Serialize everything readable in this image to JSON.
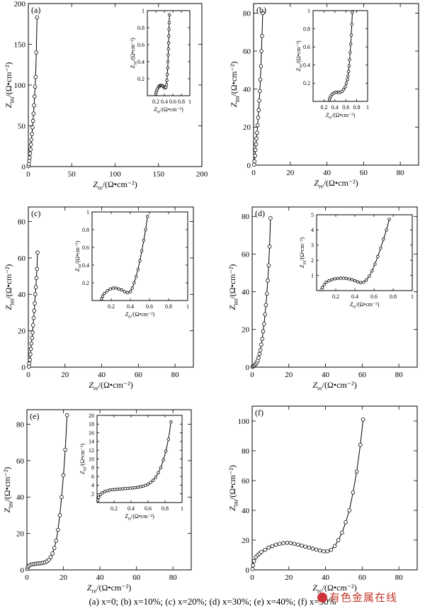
{
  "caption": "(a) x=0; (b) x=10%; (c) x=20%; (d) x=30%; (e) x=40%; (f) x=50%",
  "watermark": "有色金属在线",
  "chart_data": [
    {
      "type": "scatter",
      "panel_label": "(a)",
      "xlabel": "Zre/(Ω•cm⁻²)",
      "ylabel": "Zim/(Ω•cm⁻²)",
      "xlim": [
        0,
        200
      ],
      "ylim": [
        0,
        200
      ],
      "xticks": [
        0,
        50,
        100,
        150,
        200
      ],
      "yticks": [
        0,
        50,
        100,
        150,
        200
      ],
      "series": [
        {
          "x": [
            0.2,
            0.5,
            1.0,
            1.5,
            2.0,
            2.5,
            3.0,
            3.6,
            4.2,
            4.8,
            5.4,
            6.0,
            6.6,
            7.2,
            7.8,
            8.4,
            9.2,
            10.0
          ],
          "y": [
            0.5,
            3,
            7,
            11,
            16,
            21,
            27,
            33,
            40,
            48,
            56,
            65,
            75,
            86,
            98,
            110,
            140,
            183
          ]
        }
      ],
      "inset": {
        "xlabel": "Zre/(Ω•cm⁻²)",
        "ylabel": "Zim/(Ω•cm⁻²)",
        "xlim": [
          0,
          1.0
        ],
        "ylim": [
          0,
          1.0
        ],
        "xticks": [
          0.2,
          0.4,
          0.6,
          0.8,
          1.0
        ],
        "yticks": [
          0.2,
          0.4,
          0.6,
          0.8,
          1.0
        ],
        "series": [
          {
            "x": [
              0.2,
              0.21,
              0.22,
              0.24,
              0.26,
              0.28,
              0.3,
              0.32,
              0.34,
              0.36,
              0.38,
              0.4,
              0.42,
              0.44,
              0.45,
              0.46,
              0.47,
              0.48,
              0.485,
              0.49,
              0.495,
              0.5,
              0.505,
              0.51,
              0.515,
              0.52
            ],
            "y": [
              0.02,
              0.04,
              0.06,
              0.08,
              0.1,
              0.11,
              0.12,
              0.12,
              0.12,
              0.115,
              0.105,
              0.095,
              0.09,
              0.1,
              0.13,
              0.18,
              0.25,
              0.33,
              0.4,
              0.48,
              0.55,
              0.62,
              0.7,
              0.78,
              0.86,
              0.95
            ]
          }
        ]
      }
    },
    {
      "type": "scatter",
      "panel_label": "(b)",
      "xlabel": "Zre/(Ω•cm⁻²)",
      "ylabel": "Zim/(Ω•cm⁻²)",
      "xlim": [
        0,
        90
      ],
      "ylim": [
        0,
        85
      ],
      "xticks": [
        0,
        20,
        40,
        60,
        80
      ],
      "yticks": [
        0,
        20,
        40,
        60,
        80
      ],
      "series": [
        {
          "x": [
            0.3,
            0.5,
            0.8,
            1.0,
            1.3,
            1.6,
            1.9,
            2.2,
            2.5,
            2.8,
            3.1,
            3.4,
            3.7,
            4.0,
            4.3,
            4.6,
            5.0
          ],
          "y": [
            0.3,
            2,
            5,
            8,
            11,
            14,
            17,
            21,
            25,
            29,
            34,
            39,
            45,
            52,
            60,
            68,
            80
          ]
        }
      ],
      "inset": {
        "xlabel": "Zre/(Ω•cm⁻²)",
        "ylabel": "Zim/(Ω•cm⁻²)",
        "xlim": [
          0,
          1.0
        ],
        "ylim": [
          0,
          1.0
        ],
        "xticks": [
          0.2,
          0.4,
          0.6,
          0.8,
          1.0
        ],
        "yticks": [
          0.2,
          0.4,
          0.6,
          0.8,
          1.0
        ],
        "series": [
          {
            "x": [
              0.3,
              0.31,
              0.33,
              0.35,
              0.38,
              0.41,
              0.44,
              0.47,
              0.5,
              0.53,
              0.56,
              0.59,
              0.61,
              0.63,
              0.64,
              0.65,
              0.66,
              0.67,
              0.68,
              0.69,
              0.7,
              0.71,
              0.72
            ],
            "y": [
              0.02,
              0.04,
              0.06,
              0.08,
              0.09,
              0.1,
              0.1,
              0.1,
              0.1,
              0.11,
              0.13,
              0.16,
              0.2,
              0.24,
              0.28,
              0.33,
              0.39,
              0.46,
              0.54,
              0.63,
              0.73,
              0.85,
              0.98
            ]
          }
        ]
      }
    },
    {
      "type": "scatter",
      "panel_label": "(c)",
      "xlabel": "Zre/(Ω•cm⁻²)",
      "ylabel": "Zim/(Ω•cm⁻²)",
      "xlim": [
        0,
        90
      ],
      "ylim": [
        0,
        88
      ],
      "xticks": [
        0,
        20,
        40,
        60,
        80
      ],
      "yticks": [
        0,
        20,
        40,
        60,
        80
      ],
      "series": [
        {
          "x": [
            0.3,
            0.5,
            0.8,
            1.1,
            1.4,
            1.7,
            2.0,
            2.3,
            2.6,
            2.9,
            3.2,
            3.5,
            3.8,
            4.1,
            4.4,
            4.7,
            5.0
          ],
          "y": [
            0.3,
            2,
            4,
            7,
            10,
            13,
            16,
            19,
            23,
            27,
            31,
            35,
            40,
            44,
            49,
            54,
            63
          ]
        }
      ],
      "inset": {
        "xlabel": "Zre/(Ω•cm⁻²)",
        "ylabel": "Zim/(Ω•cm⁻²)",
        "xlim": [
          0,
          1.0
        ],
        "ylim": [
          0,
          1.0
        ],
        "xticks": [
          0.2,
          0.4,
          0.6,
          0.8,
          1.0
        ],
        "yticks": [
          0.2,
          0.4,
          0.6,
          0.8,
          1.0
        ],
        "series": [
          {
            "x": [
              0.1,
              0.11,
              0.13,
              0.16,
              0.19,
              0.22,
              0.25,
              0.28,
              0.31,
              0.34,
              0.37,
              0.4,
              0.42,
              0.44,
              0.46,
              0.48,
              0.5,
              0.52,
              0.54,
              0.56,
              0.58
            ],
            "y": [
              0.02,
              0.05,
              0.08,
              0.11,
              0.13,
              0.14,
              0.14,
              0.13,
              0.12,
              0.1,
              0.09,
              0.1,
              0.14,
              0.2,
              0.27,
              0.35,
              0.45,
              0.56,
              0.68,
              0.8,
              0.95
            ]
          }
        ]
      }
    },
    {
      "type": "scatter",
      "panel_label": "(d)",
      "xlabel": "Zre/(Ω•cm⁻²)",
      "ylabel": "Zim/(Ω•cm⁻²)",
      "xlim": [
        0,
        90
      ],
      "ylim": [
        0,
        85
      ],
      "xticks": [
        0,
        20,
        40,
        60,
        80
      ],
      "yticks": [
        0,
        20,
        40,
        60,
        80
      ],
      "series": [
        {
          "x": [
            0.2,
            0.5,
            1.0,
            1.5,
            2.0,
            2.5,
            3.0,
            3.5,
            4.0,
            4.5,
            5.0,
            5.5,
            6.0,
            6.5,
            7.0,
            7.5,
            8.0,
            8.5,
            9.0,
            9.5,
            10.0
          ],
          "y": [
            0.2,
            0.5,
            0.8,
            1.2,
            1.8,
            2.5,
            3.5,
            5,
            7,
            9,
            12,
            15,
            19,
            23,
            28,
            33,
            39,
            46,
            54,
            64,
            79
          ]
        }
      ],
      "inset": {
        "xlabel": "Zre/(Ω•cm⁻²)",
        "ylabel": "Zim/(Ω•cm⁻²)",
        "xlim": [
          0,
          1.0
        ],
        "ylim": [
          0,
          5
        ],
        "xticks": [
          0.2,
          0.4,
          0.6,
          0.8,
          1.0
        ],
        "yticks": [
          1,
          2,
          3,
          4,
          5
        ],
        "series": [
          {
            "x": [
              0.05,
              0.06,
              0.08,
              0.1,
              0.13,
              0.16,
              0.19,
              0.22,
              0.25,
              0.28,
              0.31,
              0.34,
              0.37,
              0.4,
              0.43,
              0.46,
              0.49,
              0.52,
              0.55,
              0.58,
              0.61,
              0.64,
              0.67,
              0.7,
              0.73,
              0.76
            ],
            "y": [
              0.05,
              0.2,
              0.4,
              0.55,
              0.65,
              0.72,
              0.78,
              0.8,
              0.82,
              0.82,
              0.8,
              0.77,
              0.72,
              0.65,
              0.58,
              0.52,
              0.55,
              0.7,
              0.95,
              1.3,
              1.75,
              2.25,
              2.8,
              3.4,
              4.0,
              4.7
            ]
          }
        ]
      }
    },
    {
      "type": "scatter",
      "panel_label": "(e)",
      "xlabel": "Zre/(Ω•cm⁻²)",
      "ylabel": "Zim/(Ω•cm⁻²)",
      "xlim": [
        0,
        90
      ],
      "ylim": [
        0,
        88
      ],
      "xticks": [
        0,
        20,
        40,
        60,
        80
      ],
      "yticks": [
        0,
        20,
        40,
        60,
        80
      ],
      "series": [
        {
          "x": [
            0.2,
            0.5,
            1.0,
            2.0,
            3.0,
            4.0,
            5.0,
            6.0,
            7.0,
            8.0,
            9.0,
            10.0,
            11.0,
            12.0,
            13.0,
            14.0,
            15.0,
            16.0,
            17.0,
            18.0,
            19.0,
            20.0,
            21.0,
            22.0
          ],
          "y": [
            0.5,
            1.5,
            2.2,
            2.8,
            3.1,
            3.3,
            3.4,
            3.5,
            3.6,
            3.7,
            3.9,
            4.2,
            4.7,
            5.5,
            7,
            9,
            12,
            16,
            22,
            30,
            40,
            52,
            66,
            85
          ]
        }
      ],
      "inset": {
        "xlabel": "Zre/(Ω•cm⁻²)",
        "ylabel": "Zim/(Ω•cm⁻²)",
        "xlim": [
          0,
          1.0
        ],
        "ylim": [
          0,
          20
        ],
        "xticks": [
          0.2,
          0.4,
          0.6,
          0.8,
          1.0
        ],
        "yticks": [
          2,
          4,
          6,
          8,
          10,
          12,
          14,
          16,
          18,
          20
        ],
        "series": [
          {
            "x": [
              0.01,
              0.02,
              0.04,
              0.06,
              0.09,
              0.12,
              0.15,
              0.18,
              0.21,
              0.24,
              0.27,
              0.3,
              0.33,
              0.36,
              0.39,
              0.42,
              0.45,
              0.48,
              0.51,
              0.54,
              0.57,
              0.6,
              0.63,
              0.66,
              0.69,
              0.72,
              0.75,
              0.78,
              0.81,
              0.84,
              0.87
            ],
            "y": [
              0.5,
              1.2,
              1.8,
              2.2,
              2.5,
              2.7,
              2.85,
              2.95,
              3.0,
              3.05,
              3.1,
              3.15,
              3.2,
              3.25,
              3.3,
              3.35,
              3.4,
              3.5,
              3.6,
              3.75,
              3.95,
              4.2,
              4.6,
              5.1,
              5.8,
              6.8,
              8.0,
              9.7,
              11.8,
              14.5,
              18.5
            ]
          }
        ]
      }
    },
    {
      "type": "scatter",
      "panel_label": "(f)",
      "xlabel": "Zre/(Ω•cm⁻²)",
      "ylabel": "Zim/(Ω•cm⁻²)",
      "xlim": [
        0,
        90
      ],
      "ylim": [
        0,
        110
      ],
      "xticks": [
        0,
        20,
        40,
        60,
        80
      ],
      "yticks": [
        0,
        20,
        40,
        60,
        80,
        100
      ],
      "series": [
        {
          "x": [
            0.2,
            0.5,
            1.0,
            2.0,
            3.0,
            4.0,
            5.0,
            7.0,
            9.0,
            11.0,
            13.0,
            15.0,
            17.0,
            19.0,
            21.0,
            23.0,
            25.0,
            27.0,
            29.0,
            31.0,
            33.0,
            35.0,
            37.0,
            39.0,
            41.0,
            43.0,
            45.0,
            47.0,
            49.0,
            51.0,
            53.0,
            55.0,
            57.0,
            59.0,
            60.5
          ],
          "y": [
            0.5,
            3,
            6,
            8.5,
            10,
            11,
            12,
            13.5,
            15,
            16,
            17,
            17.5,
            18,
            18.2,
            18,
            17.5,
            17,
            16.3,
            15.6,
            15,
            14.3,
            13.6,
            13,
            12.5,
            12.5,
            13.5,
            16,
            20,
            25,
            32,
            40,
            52,
            66,
            84,
            101
          ]
        }
      ]
    }
  ]
}
